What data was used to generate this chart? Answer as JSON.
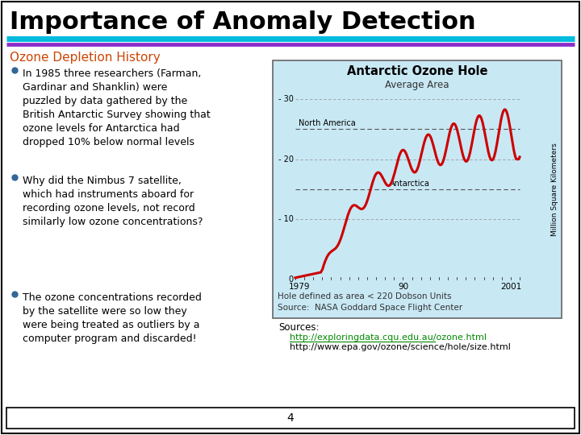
{
  "title": "Importance of Anomaly Detection",
  "title_fontsize": 22,
  "title_color": "#000000",
  "header_line1_color": "#00BBDD",
  "header_line2_color": "#8B2FC9",
  "section_title": "Ozone Depletion History",
  "section_title_color": "#CC4400",
  "section_title_fontsize": 11,
  "bullet_color": "#336699",
  "bullet_fontsize": 9.0,
  "bullets": [
    "In 1985 three researchers (Farman,\nGardinar and Shanklin) were\npuzzled by data gathered by the\nBritish Antarctic Survey showing that\nozone levels for Antarctica had\ndropped 10% below normal levels",
    "Why did the Nimbus 7 satellite,\nwhich had instruments aboard for\nrecording ozone levels, not record\nsimilarly low ozone concentrations?",
    "The ozone concentrations recorded\nby the satellite were so low they\nwere being treated as outliers by a\ncomputer program and discarded!"
  ],
  "sources_label": "Sources:",
  "source1": "http://exploringdata.cqu.edu.au/ozone.html",
  "source2": "http://www.epa.gov/ozone/science/hole/size.html",
  "page_number": "4",
  "bg_color": "#FFFFFF",
  "slide_border_color": "#000000",
  "footer_border_color": "#000000",
  "img_title": "Antarctic Ozone Hole",
  "img_subtitle": "Average Area",
  "img_caption1": "Hole defined as area < 220 Dobson Units",
  "img_caption2": "Source:  NASA Goddard Space Flight Center",
  "img_ylabel": "Million Square Kilometers",
  "img_xlabels": [
    "1979",
    "90",
    "2001"
  ],
  "img_yticks": [
    0,
    10,
    20,
    30
  ],
  "na_label": "North America",
  "ant_label": "Antarctica",
  "na_level": 25,
  "ant_level": 15,
  "source1_color": "#008800",
  "source2_color": "#000000"
}
